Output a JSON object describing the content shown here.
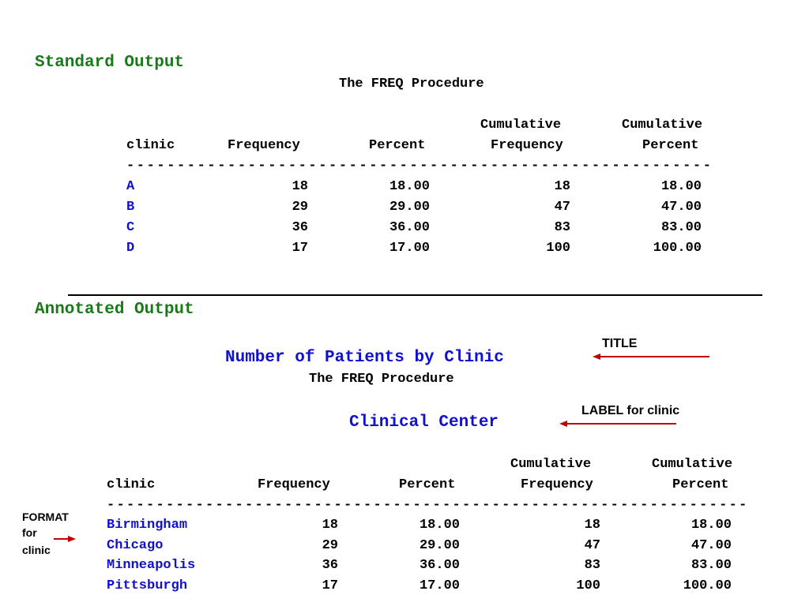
{
  "standard": {
    "section_title": "Standard Output",
    "procedure": "The FREQ Procedure",
    "headers": {
      "cum_top1": "Cumulative",
      "cum_top2": "Cumulative",
      "clinic": "clinic",
      "frequency": "Frequency",
      "percent": "Percent",
      "cum_frequency": "Frequency",
      "cum_percent": "Percent"
    },
    "dashes": "----------------------------------------------------------",
    "rows": [
      {
        "clinic": "A",
        "frequency": "18",
        "percent": "18.00",
        "cum_frequency": "18",
        "cum_percent": "18.00"
      },
      {
        "clinic": "B",
        "frequency": "29",
        "percent": "29.00",
        "cum_frequency": "47",
        "cum_percent": "47.00"
      },
      {
        "clinic": "C",
        "frequency": "36",
        "percent": "36.00",
        "cum_frequency": "83",
        "cum_percent": "83.00"
      },
      {
        "clinic": "D",
        "frequency": "17",
        "percent": "17.00",
        "cum_frequency": "100",
        "cum_percent": "100.00"
      }
    ]
  },
  "annotated": {
    "section_title": "Annotated Output",
    "title": "Number of Patients by Clinic",
    "procedure": "The FREQ Procedure",
    "label": "Clinical Center",
    "headers": {
      "cum_top1": "Cumulative",
      "cum_top2": "Cumulative",
      "clinic": "clinic",
      "frequency": "Frequency",
      "percent": "Percent",
      "cum_frequency": "Frequency",
      "cum_percent": "Percent"
    },
    "dashes": "-----------------------------------------------------------------",
    "rows": [
      {
        "clinic": "Birmingham",
        "frequency": "18",
        "percent": "18.00",
        "cum_frequency": "18",
        "cum_percent": "18.00"
      },
      {
        "clinic": "Chicago",
        "frequency": "29",
        "percent": "29.00",
        "cum_frequency": "47",
        "cum_percent": "47.00"
      },
      {
        "clinic": "Minneapolis",
        "frequency": "36",
        "percent": "36.00",
        "cum_frequency": "83",
        "cum_percent": "83.00"
      },
      {
        "clinic": "Pittsburgh",
        "frequency": "17",
        "percent": "17.00",
        "cum_frequency": "100",
        "cum_percent": "100.00"
      }
    ]
  },
  "annotations": {
    "title_note": "TITLE",
    "label_note": "LABEL for clinic",
    "format_note_1": "FORMAT",
    "format_note_2": "for",
    "format_note_3": "clinic"
  },
  "colors": {
    "section_green": "#1a7a1a",
    "category_blue": "#1010d0",
    "arrow_red": "#c00000"
  }
}
